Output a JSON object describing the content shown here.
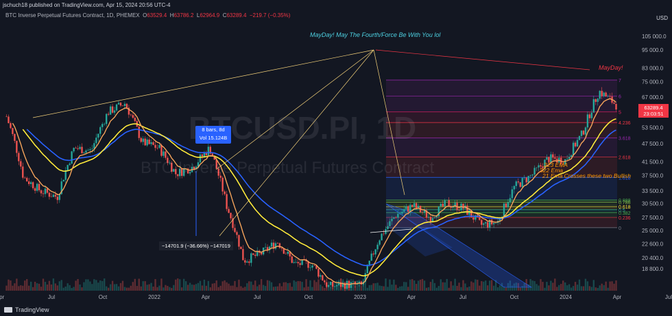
{
  "header": {
    "publisher": "jschuch18 published on TradingView.com, Apr 15, 2024 20:56 UTC-4",
    "currency": "USD"
  },
  "legend": {
    "symbol": "BTC Inverse Perpetual Futures Contract, 1D, PHEMEX",
    "open_label": "O",
    "open": "63529.4",
    "high_label": "H",
    "high": "63786.2",
    "low_label": "L",
    "low": "62964.9",
    "close_label": "C",
    "close": "63289.4",
    "change": "−219.7 (−0.35%)"
  },
  "watermark": {
    "symbol": "BTCUSD.PI, 1D",
    "name": "BTC Inverse Perpetual Futures Contract"
  },
  "annotations": {
    "headline": "MayDay! May The Fourth/Force Be With You lol",
    "mayday": "MayDay!",
    "bars_box_line1": "8 bars, 8d",
    "bars_box_line2": "Vol 15.124B",
    "measure": "−14701.9 (−36.66%) −147019",
    "ema1": "223 EMA",
    "ema2": "322 Ema",
    "cross": "21 Ema Crosses these two Bullish"
  },
  "price_badge": {
    "price": "63289.4",
    "countdown": "23:03:51"
  },
  "footer": {
    "brand": "TradingView"
  },
  "colors": {
    "bg": "#131722",
    "up": "#26a69a",
    "down": "#ef5350",
    "ema_fast": "#f5a45b",
    "ema_mid": "#ffeb3b",
    "ema_slow": "#2962ff",
    "annot_cyan": "#4dd0e1",
    "annot_red": "#f23645",
    "annot_orange": "#ff9800"
  },
  "chart_data": {
    "type": "line",
    "scale": "log",
    "ylim": [
      16000,
      118000
    ],
    "y_ticks": [
      "105 000.0",
      "95 000.0",
      "83 000.0",
      "75 000.0",
      "67 000.0",
      "60 000.0",
      "53 500.0",
      "47 500.0",
      "41 500.0",
      "37 500.0",
      "33 500.0",
      "30 500.0",
      "27 500.0",
      "25 000.0",
      "22 600.0",
      "20 400.0",
      "18 800.0"
    ],
    "x_ticks": [
      "Apr",
      "Jul",
      "Oct",
      "2022",
      "Apr",
      "Jul",
      "Oct",
      "2023",
      "Apr",
      "Jul",
      "Oct",
      "2024",
      "Apr",
      "Jul"
    ],
    "fib_levels": [
      {
        "label": "7",
        "value": 76000
      },
      {
        "label": "6",
        "value": 67500
      },
      {
        "label": "5",
        "value": 60000
      },
      {
        "label": "4.236",
        "value": 55500
      },
      {
        "label": "3.618",
        "value": 49500
      },
      {
        "label": "2.618",
        "value": 43000
      },
      {
        "label": "1.618",
        "value": 37000
      },
      {
        "label": "0.888",
        "value": 31300
      },
      {
        "label": "0.786",
        "value": 30800
      },
      {
        "label": "0.618",
        "value": 29800
      },
      {
        "label": "0.5",
        "value": 29100
      },
      {
        "label": "0.382",
        "value": 28500
      },
      {
        "label": "0.236",
        "value": 27500
      },
      {
        "label": "0",
        "value": 25500
      }
    ],
    "price_path": [
      {
        "x": "Apr",
        "y": 58000
      },
      {
        "x": "May",
        "y": 37000
      },
      {
        "x": "Jun",
        "y": 33500
      },
      {
        "x": "Jul",
        "y": 32000
      },
      {
        "x": "Aug",
        "y": 46000
      },
      {
        "x": "Sep",
        "y": 45000
      },
      {
        "x": "Oct",
        "y": 60000
      },
      {
        "x": "Nov",
        "y": 64000
      },
      {
        "x": "Dec",
        "y": 48000
      },
      {
        "x": "2022",
        "y": 46000
      },
      {
        "x": "Feb",
        "y": 38000
      },
      {
        "x": "Mar",
        "y": 40000
      },
      {
        "x": "Apr",
        "y": 46000
      },
      {
        "x": "May",
        "y": 30000
      },
      {
        "x": "Jun",
        "y": 20000
      },
      {
        "x": "Jul",
        "y": 21000
      },
      {
        "x": "Aug",
        "y": 23000
      },
      {
        "x": "Sep",
        "y": 19500
      },
      {
        "x": "Oct",
        "y": 19500
      },
      {
        "x": "Nov",
        "y": 16500
      },
      {
        "x": "Dec",
        "y": 16800
      },
      {
        "x": "2023",
        "y": 16600
      },
      {
        "x": "Feb",
        "y": 23500
      },
      {
        "x": "Mar",
        "y": 28000
      },
      {
        "x": "Apr",
        "y": 30000
      },
      {
        "x": "May",
        "y": 27500
      },
      {
        "x": "Jun",
        "y": 30500
      },
      {
        "x": "Jul",
        "y": 29500
      },
      {
        "x": "Aug",
        "y": 26000
      },
      {
        "x": "Sep",
        "y": 26500
      },
      {
        "x": "Oct",
        "y": 34500
      },
      {
        "x": "Nov",
        "y": 37500
      },
      {
        "x": "Dec",
        "y": 42500
      },
      {
        "x": "2024",
        "y": 42000
      },
      {
        "x": "Feb",
        "y": 51000
      },
      {
        "x": "Mar",
        "y": 70000
      },
      {
        "x": "Apr",
        "y": 63289
      }
    ]
  }
}
